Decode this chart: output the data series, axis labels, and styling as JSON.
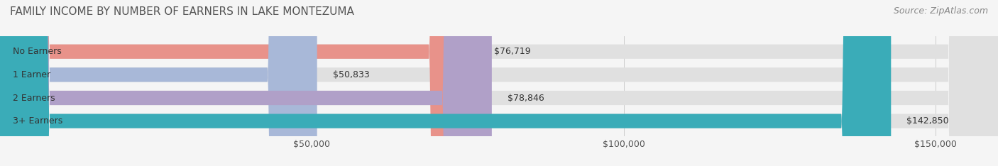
{
  "title": "FAMILY INCOME BY NUMBER OF EARNERS IN LAKE MONTEZUMA",
  "source": "Source: ZipAtlas.com",
  "categories": [
    "No Earners",
    "1 Earner",
    "2 Earners",
    "3+ Earners"
  ],
  "values": [
    76719,
    50833,
    78846,
    142850
  ],
  "labels": [
    "$76,719",
    "$50,833",
    "$78,846",
    "$142,850"
  ],
  "bar_colors": [
    "#e8928a",
    "#a8b8d8",
    "#b0a0c8",
    "#3aacb8"
  ],
  "bar_bg_color": "#e8e8e8",
  "xmin": 0,
  "xmax": 160000,
  "xticks": [
    50000,
    100000,
    150000
  ],
  "xticklabels": [
    "$50,000",
    "$100,000",
    "$150,000"
  ],
  "background_color": "#f5f5f5",
  "title_fontsize": 11,
  "source_fontsize": 9,
  "label_fontsize": 9,
  "tick_fontsize": 9,
  "bar_height": 0.62,
  "bar_gap": 0.15
}
